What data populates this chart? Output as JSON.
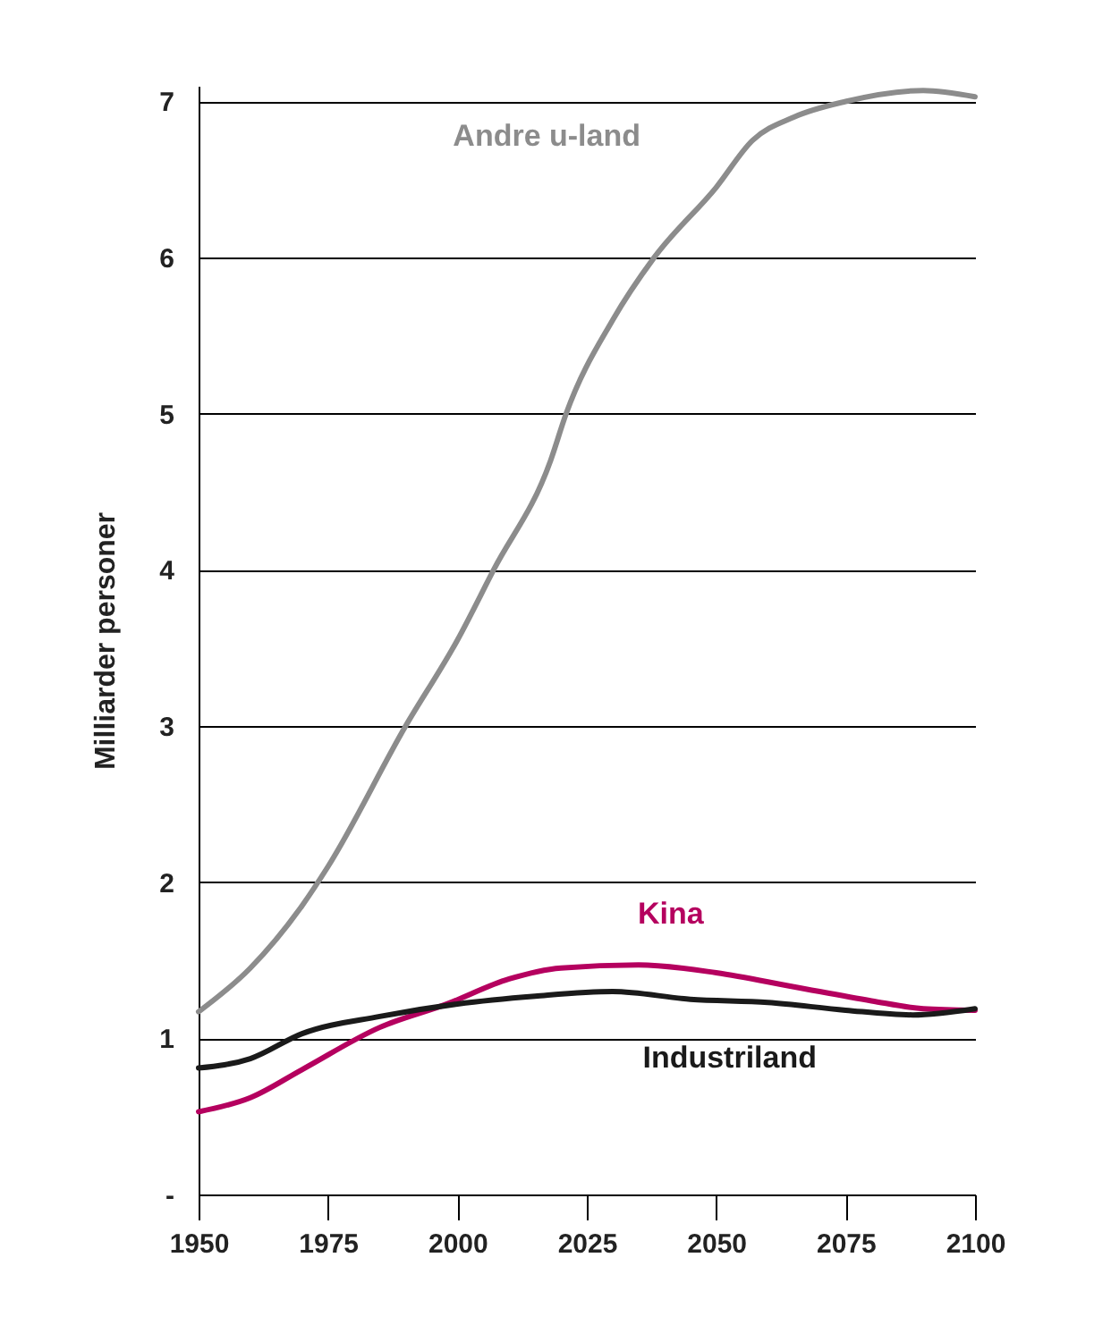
{
  "chart_data": {
    "type": "line",
    "ylabel": "Milliarder personer",
    "xlim": [
      1950,
      2100
    ],
    "xticks": [
      1950,
      1975,
      2000,
      2025,
      2050,
      2075,
      2100
    ],
    "ylim": [
      0,
      7.1
    ],
    "yticks": [
      {
        "value": 0,
        "label": "-"
      },
      1,
      2,
      3,
      4,
      5,
      6,
      7
    ],
    "grid": "y",
    "legend": false,
    "line_style": "solid",
    "marker": "none",
    "series": [
      {
        "name": "Andre u-land",
        "color": "#8c8c8c",
        "x": [
          1950,
          1960,
          1970,
          1975,
          1990,
          2000,
          2007,
          2018,
          2021,
          2030,
          2038,
          2050,
          2057,
          2065,
          2075,
          2090,
          2100
        ],
        "values": [
          1.17,
          1.45,
          1.85,
          2.1,
          3.0,
          3.55,
          4.0,
          4.7,
          5.0,
          5.6,
          6.0,
          6.45,
          6.75,
          6.9,
          7.0,
          7.07,
          7.03
        ]
      },
      {
        "name": "Kina",
        "color": "#b5005f",
        "x": [
          1950,
          1960,
          1970,
          1985,
          1998,
          2010,
          2020,
          2035,
          2050,
          2065,
          2080,
          2090,
          2100
        ],
        "values": [
          0.53,
          0.62,
          0.8,
          1.07,
          1.22,
          1.38,
          1.45,
          1.47,
          1.42,
          1.33,
          1.24,
          1.19,
          1.18
        ]
      },
      {
        "name": "Industriland",
        "color": "#1a1a1a",
        "x": [
          1950,
          1960,
          1970,
          1985,
          2000,
          2015,
          2030,
          2045,
          2060,
          2075,
          2088,
          2100
        ],
        "values": [
          0.81,
          0.87,
          1.03,
          1.14,
          1.22,
          1.27,
          1.3,
          1.25,
          1.23,
          1.18,
          1.15,
          1.19
        ]
      }
    ]
  }
}
